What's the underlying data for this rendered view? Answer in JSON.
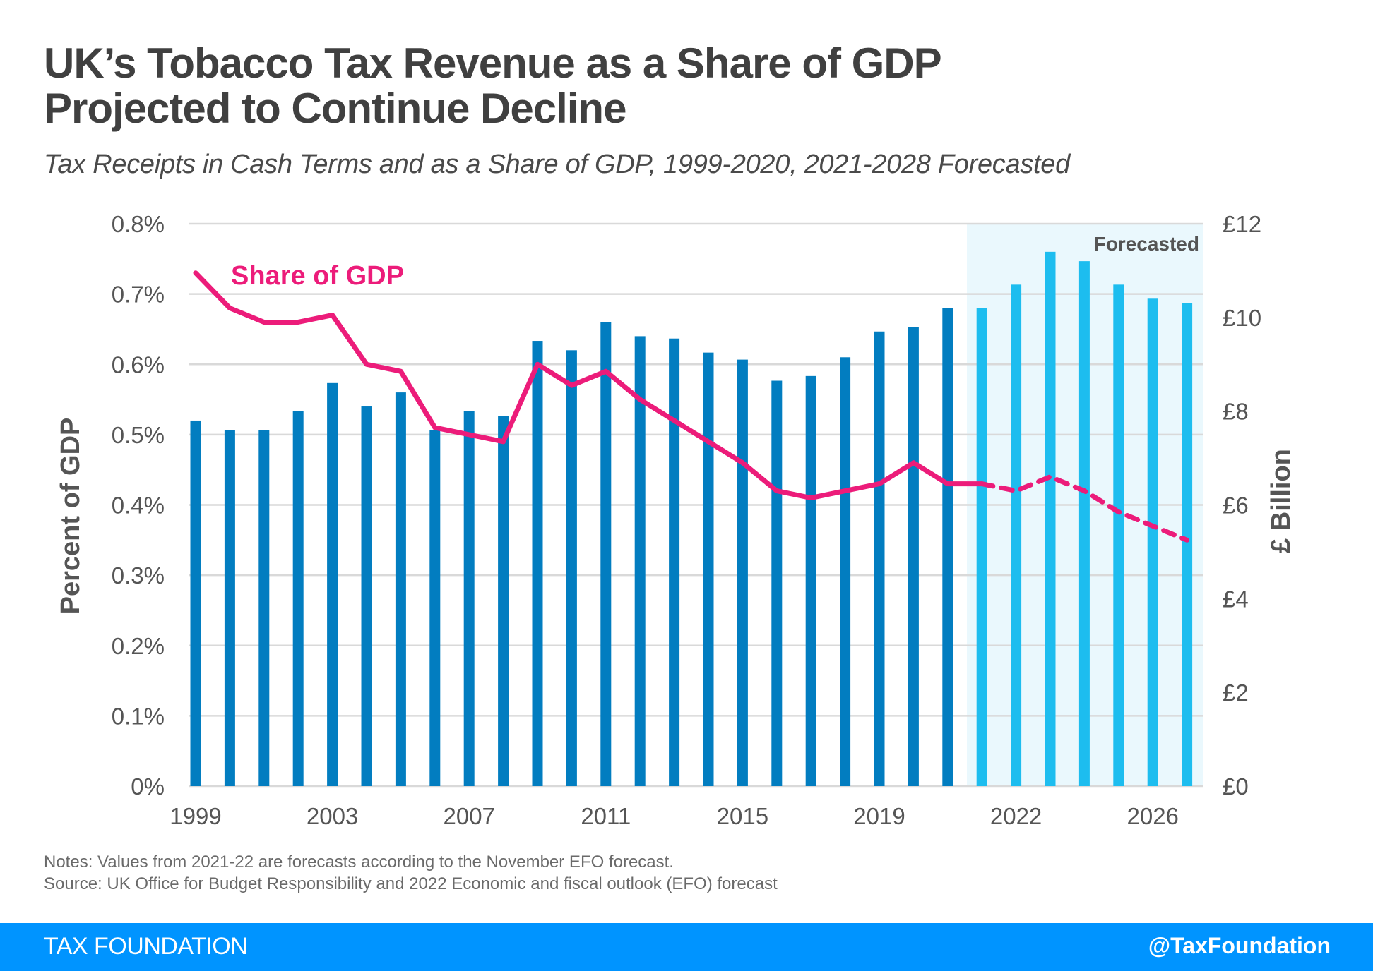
{
  "header": {
    "title_line1": "UK’s Tobacco Tax Revenue as a Share of GDP",
    "title_line2": "Projected to Continue Decline",
    "subtitle": "Tax Receipts in Cash Terms and as a Share of GDP, 1999-2020, 2021-2028 Forecasted"
  },
  "notes": {
    "line1": "Notes: Values from 2021-22 are forecasts according to the November EFO forecast.",
    "line2": "Source: UK Office for Budget Responsibility and 2022 Economic and fiscal outlook (EFO) forecast"
  },
  "footer": {
    "brand": "TAX FOUNDATION",
    "handle": "@TaxFoundation"
  },
  "colors": {
    "bar_actual": "#027DC0",
    "bar_forecast": "#1DBDEF",
    "line": "#EC1C7A",
    "forecast_band": "#EAF8FD",
    "grid": "#D9D9D9",
    "footer": "#0094FF"
  },
  "chart_data": {
    "type": "bar+line",
    "title": "UK’s Tobacco Tax Revenue as a Share of GDP Projected to Continue Decline",
    "subtitle": "Tax Receipts in Cash Terms and as a Share of GDP, 1999-2020, 2021-2028 Forecasted",
    "categories": [
      "1999",
      "2000",
      "2001",
      "2002",
      "2003",
      "2004",
      "2005",
      "2006",
      "2007",
      "2008",
      "2009",
      "2010",
      "2011",
      "2012",
      "2013",
      "2014",
      "2015",
      "2016",
      "2017",
      "2018",
      "2019",
      "2020",
      "2021",
      "2021",
      "2022",
      "2023",
      "2024",
      "2025",
      "2026",
      "2027"
    ],
    "x_tick_labels": [
      {
        "index": 0,
        "label": "1999"
      },
      {
        "index": 4,
        "label": "2003"
      },
      {
        "index": 8,
        "label": "2007"
      },
      {
        "index": 12,
        "label": "2011"
      },
      {
        "index": 16,
        "label": "2015"
      },
      {
        "index": 20,
        "label": "2019"
      },
      {
        "index": 24,
        "label": "2022"
      },
      {
        "index": 28,
        "label": "2026"
      }
    ],
    "forecast_start_index": 23,
    "forecast_label": "Forecasted",
    "series": [
      {
        "name": "Tax receipts (£ billion)",
        "type": "bar",
        "axis": "right",
        "values": [
          7.8,
          7.6,
          7.6,
          8.0,
          8.6,
          8.1,
          8.4,
          7.6,
          8.0,
          7.9,
          9.5,
          9.3,
          9.9,
          9.6,
          9.55,
          9.25,
          9.1,
          8.65,
          8.75,
          9.15,
          9.7,
          9.8,
          10.2,
          10.2,
          10.7,
          11.4,
          11.2,
          10.7,
          10.4,
          10.3
        ]
      },
      {
        "name": "Share of GDP",
        "type": "line",
        "axis": "left",
        "values": [
          0.73,
          0.68,
          0.66,
          0.66,
          0.67,
          0.6,
          0.59,
          0.51,
          0.5,
          0.49,
          0.6,
          0.57,
          0.59,
          0.55,
          0.52,
          0.49,
          0.46,
          0.42,
          0.41,
          0.42,
          0.43,
          0.46,
          0.43,
          0.43,
          0.42,
          0.44,
          0.42,
          0.39,
          0.37,
          0.35
        ]
      }
    ],
    "y_left": {
      "label": "Percent of GDP",
      "range": [
        0,
        0.8
      ],
      "ticks": [
        0,
        0.1,
        0.2,
        0.3,
        0.4,
        0.5,
        0.6,
        0.7,
        0.8
      ],
      "tick_labels": [
        "0%",
        "0.1%",
        "0.2%",
        "0.3%",
        "0.4%",
        "0.5%",
        "0.6%",
        "0.7%",
        "0.8%"
      ]
    },
    "y_right": {
      "label": "£ Billion",
      "range": [
        0,
        12
      ],
      "ticks": [
        0,
        2,
        4,
        6,
        8,
        10,
        12
      ],
      "tick_labels": [
        "£0",
        "£2",
        "£4",
        "£6",
        "£8",
        "£10",
        "£12"
      ]
    },
    "line_label": "Share of GDP",
    "grid": true,
    "legend": "inline-label top-left"
  }
}
